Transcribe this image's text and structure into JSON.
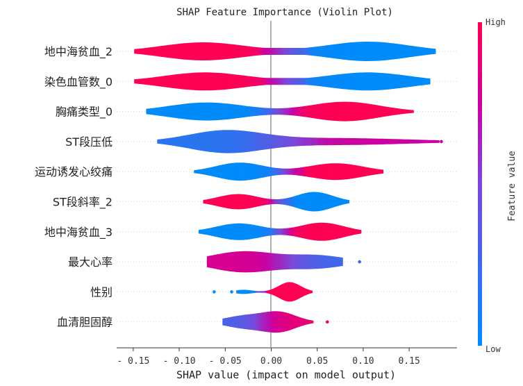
{
  "chart_data": {
    "type": "violin",
    "title": "SHAP Feature Importance (Violin Plot)",
    "xlabel": "SHAP value (impact on model output)",
    "xlim": [
      -0.168,
      0.202
    ],
    "xticks": [
      -0.15,
      -0.1,
      -0.05,
      0.0,
      0.05,
      0.1,
      0.15
    ],
    "xtick_labels": [
      "- 0.15",
      "- 0.10",
      "- 0.05",
      "0.00",
      "0.05",
      "0.10",
      "0.15"
    ],
    "zero_line": 0.0,
    "colorbar": {
      "title": "Feature value",
      "high_label": "High",
      "low_label": "Low",
      "low_color": "#008bfb",
      "high_color": "#ff0052"
    },
    "features": [
      {
        "name": "地中海贫血_2",
        "min": -0.149,
        "max": 0.179,
        "outliers": [],
        "lobes": [
          {
            "x": -0.074,
            "w": 13,
            "s": 0.045,
            "c": 1.0
          },
          {
            "x": 0.105,
            "w": 14,
            "s": 0.045,
            "c": 0.0
          }
        ],
        "bridge": {
          "from": -0.01,
          "to": 0.04,
          "w": 5,
          "c": 0.5
        }
      },
      {
        "name": "染色血管数_0",
        "min": -0.149,
        "max": 0.173,
        "outliers": [],
        "lobes": [
          {
            "x": -0.072,
            "w": 13,
            "s": 0.045,
            "c": 1.0
          },
          {
            "x": 0.105,
            "w": 13,
            "s": 0.045,
            "c": 0.0
          }
        ],
        "bridge": {
          "from": -0.005,
          "to": 0.04,
          "w": 5,
          "c": 0.5
        }
      },
      {
        "name": "胸痛类型_0",
        "min": -0.136,
        "max": 0.155,
        "outliers": [],
        "lobes": [
          {
            "x": -0.07,
            "w": 13,
            "s": 0.042,
            "c": 0.0
          },
          {
            "x": 0.08,
            "w": 14,
            "s": 0.038,
            "c": 1.0
          }
        ],
        "bridge": {
          "from": 0.005,
          "to": 0.03,
          "w": 3,
          "c": 0.5
        }
      },
      {
        "name": "ST段压低",
        "min": -0.124,
        "max": 0.183,
        "outliers": [
          0.185
        ],
        "lobes": [
          {
            "x": -0.05,
            "w": 15,
            "s": 0.04,
            "c": 0.12
          },
          {
            "x": 0.07,
            "w": 5,
            "s": 0.08,
            "c": 0.75
          }
        ],
        "bridge": {
          "from": -0.02,
          "to": 0.05,
          "w": 5,
          "c": 0.45
        }
      },
      {
        "name": "运动诱发心绞痛",
        "min": -0.084,
        "max": 0.122,
        "outliers": [],
        "lobes": [
          {
            "x": -0.034,
            "w": 13,
            "s": 0.026,
            "c": 0.0
          },
          {
            "x": 0.07,
            "w": 12,
            "s": 0.03,
            "c": 1.0
          }
        ],
        "bridge": {
          "from": 0.01,
          "to": 0.035,
          "w": 3,
          "c": 0.5
        }
      },
      {
        "name": "ST段斜率_2",
        "min": -0.074,
        "max": 0.085,
        "outliers": [],
        "lobes": [
          {
            "x": -0.036,
            "w": 11,
            "s": 0.022,
            "c": 1.0
          },
          {
            "x": 0.047,
            "w": 14,
            "s": 0.02,
            "c": 0.0
          }
        ],
        "bridge": {
          "from": 0.0,
          "to": 0.025,
          "w": 3,
          "c": 0.5
        }
      },
      {
        "name": "地中海贫血_3",
        "min": -0.079,
        "max": 0.098,
        "outliers": [],
        "lobes": [
          {
            "x": -0.035,
            "w": 12,
            "s": 0.025,
            "c": 0.0
          },
          {
            "x": 0.055,
            "w": 13,
            "s": 0.024,
            "c": 1.0
          }
        ],
        "bridge": {
          "from": 0.005,
          "to": 0.02,
          "w": 3,
          "c": 0.5
        }
      },
      {
        "name": "最大心率",
        "min": -0.07,
        "max": 0.078,
        "outliers": [
          0.096
        ],
        "lobes": [
          {
            "x": -0.03,
            "w": 15,
            "s": 0.035,
            "c": 0.8
          },
          {
            "x": 0.05,
            "w": 9,
            "s": 0.03,
            "c": 0.25
          }
        ],
        "bridge": {
          "from": 0.0,
          "to": 0.02,
          "w": 9,
          "c": 0.5
        }
      },
      {
        "name": "性别",
        "min": -0.038,
        "max": 0.045,
        "outliers": [
          -0.062,
          -0.043
        ],
        "lobes": [
          {
            "x": -0.03,
            "w": 3,
            "s": 0.01,
            "c": 0.0
          },
          {
            "x": 0.02,
            "w": 14,
            "s": 0.012,
            "c": 1.0
          }
        ],
        "bridge": {
          "from": -0.018,
          "to": -0.005,
          "w": 1,
          "c": 0.5
        }
      },
      {
        "name": "血清胆固醇",
        "min": -0.053,
        "max": 0.046,
        "outliers": [
          0.061
        ],
        "lobes": [
          {
            "x": -0.028,
            "w": 9,
            "s": 0.022,
            "c": 0.3
          },
          {
            "x": 0.01,
            "w": 13,
            "s": 0.018,
            "c": 0.9
          }
        ],
        "bridge": {
          "from": -0.01,
          "to": 0.0,
          "w": 9,
          "c": 0.6
        }
      }
    ]
  }
}
